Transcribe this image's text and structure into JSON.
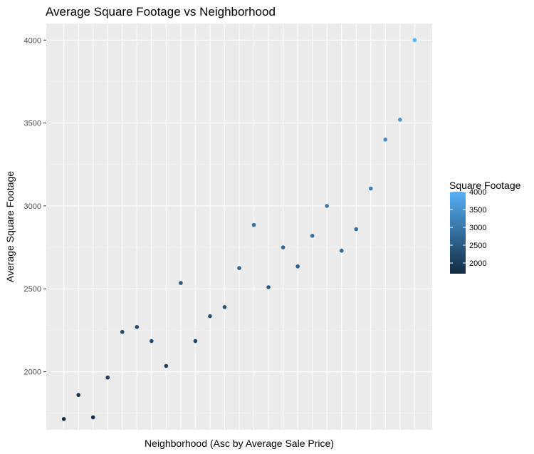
{
  "chart_data": {
    "type": "scatter",
    "title": "Average Square Footage vs Neighborhood",
    "xlabel": "Neighborhood (Asc by Average Sale Price)",
    "ylabel": "Average Square Footage",
    "x_tick_labels_shown": false,
    "ylim": [
      1650,
      4100
    ],
    "y_ticks": [
      2000,
      2500,
      3000,
      3500,
      4000
    ],
    "grid": true,
    "legend": {
      "title": "Square Footage",
      "position": "right",
      "breaks": [
        2000,
        2500,
        3000,
        3500,
        4000
      ],
      "color_range": [
        1700,
        4000
      ],
      "color_low": "#132B43",
      "color_high": "#56B1F7"
    },
    "x": [
      1,
      2,
      3,
      4,
      5,
      6,
      7,
      8,
      9,
      10,
      11,
      12,
      13,
      14,
      15,
      16,
      17,
      18,
      19,
      20,
      21,
      22,
      23,
      24,
      25
    ],
    "values": [
      1715,
      1860,
      1725,
      1965,
      2240,
      2270,
      2185,
      2035,
      2535,
      2185,
      2335,
      2390,
      2625,
      2885,
      2510,
      2750,
      2635,
      2820,
      3000,
      2730,
      2860,
      3105,
      3400,
      3520,
      4000
    ]
  }
}
